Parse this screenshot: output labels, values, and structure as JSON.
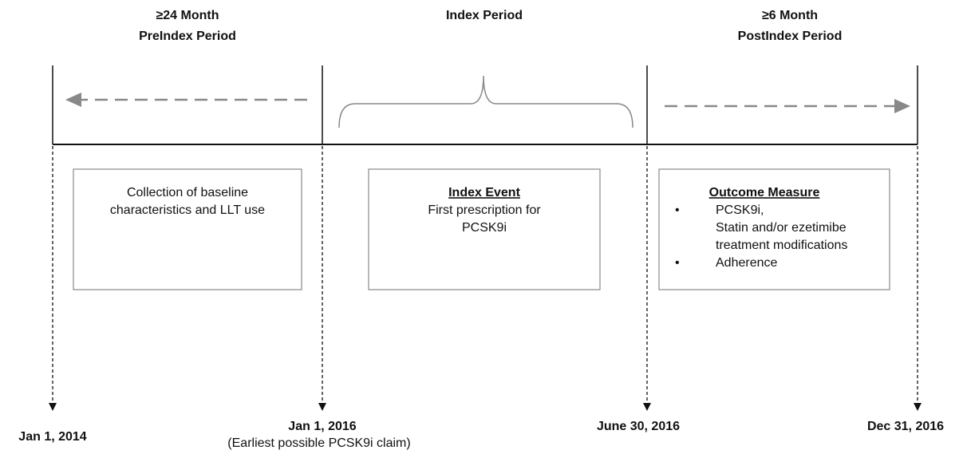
{
  "periods": [
    {
      "lines": [
        "≥24 Month",
        "PreIndex Period"
      ]
    },
    {
      "lines": [
        "Index Period"
      ]
    },
    {
      "lines": [
        "≥6 Month",
        "PostIndex Period"
      ]
    }
  ],
  "boxes": [
    {
      "lines": [
        "Collection of baseline",
        "characteristics and LLT use"
      ]
    },
    {
      "title": "Index Event",
      "lines": [
        "First prescription for",
        "PCSK9i"
      ]
    },
    {
      "title": "Outcome Measure",
      "bullets": [
        {
          "lines": [
            "PCSK9i,",
            "Statin and/or ezetimibe",
            "treatment modifications"
          ]
        },
        {
          "lines": [
            "Adherence"
          ]
        }
      ]
    }
  ],
  "dates": [
    {
      "label": "Jan 1, 2014"
    },
    {
      "label": "Jan 1, 2016",
      "note": "(Earliest possible PCSK9i claim)"
    },
    {
      "label": "June 30, 2016"
    },
    {
      "label": "Dec 31, 2016"
    }
  ]
}
